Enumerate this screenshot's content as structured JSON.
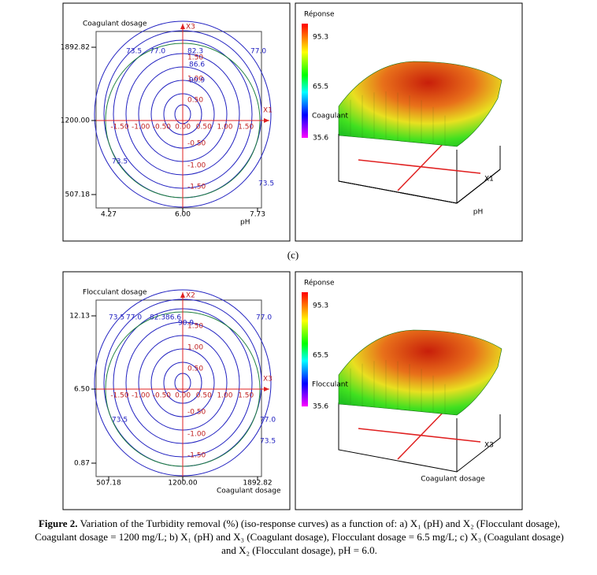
{
  "panels": [
    {
      "contour": {
        "y_label": "Coagulant dosage",
        "x_label": "pH",
        "h_axis_name": "X1",
        "v_axis_name": "X3",
        "y_ticks": [
          "1892.82",
          "1200.00",
          "507.18"
        ],
        "x_ticks": [
          "4.27",
          "6.00",
          "7.73"
        ],
        "h_coded_ticks": [
          "-1.50",
          "-1.00",
          "-0.50",
          "0.00",
          "0.50",
          "1.00",
          "1.50"
        ],
        "v_coded_ticks": [
          "1.50",
          "1.00",
          "0.50",
          "-0.50",
          "-1.00",
          "-1.50"
        ],
        "contour_labels": [
          "73.5",
          "77.0",
          "82.3",
          "86.6",
          "90.9",
          "77.0",
          "73.5",
          "73.5"
        ]
      },
      "surface": {
        "z_label": "Réponse",
        "z_ticks": [
          "95.3",
          "65.5",
          "35.6"
        ],
        "side_label": "Coagulant",
        "axis_name": "X1",
        "axis_label": "pH"
      }
    },
    {
      "contour": {
        "y_label": "Flocculant dosage",
        "x_label": "Coagulant dosage",
        "h_axis_name": "X3",
        "v_axis_name": "X2",
        "y_ticks": [
          "12.13",
          "6.50",
          "0.87"
        ],
        "x_ticks": [
          "507.18",
          "1200.00",
          "1892.82"
        ],
        "h_coded_ticks": [
          "-1.50",
          "-1.00",
          "-0.50",
          "0.00",
          "0.50",
          "1.00",
          "1.50"
        ],
        "v_coded_ticks": [
          "1.50",
          "1.00",
          "0.50",
          "-0.50",
          "-1.00",
          "-1.50"
        ],
        "contour_labels": [
          "73.5",
          "77.0",
          "82.3",
          "86.6",
          "90.9",
          "77.0",
          "73.5",
          "77.0",
          "73.5"
        ]
      },
      "surface": {
        "z_label": "Réponse",
        "z_ticks": [
          "95.3",
          "65.5",
          "35.6"
        ],
        "side_label": "Flocculant",
        "axis_name": "X3",
        "axis_label": "Coagulant dosage"
      }
    }
  ],
  "panel_label": "(c)",
  "caption": {
    "label": "Figure 2.",
    "text": "Variation of the Turbidity removal (%) (iso-response curves) as a function of: a) X₁ (pH) and X₂ (Flocculant dosage), Coagulant dosage = 1200 mg/L; b) X₁ (pH) and X₃ (Coagulant dosage), Flocculant dosage = 6.5 mg/L; c) X₃ (Coagulant dosage) and X₂ (Flocculant dosage), pH = 6.0."
  }
}
